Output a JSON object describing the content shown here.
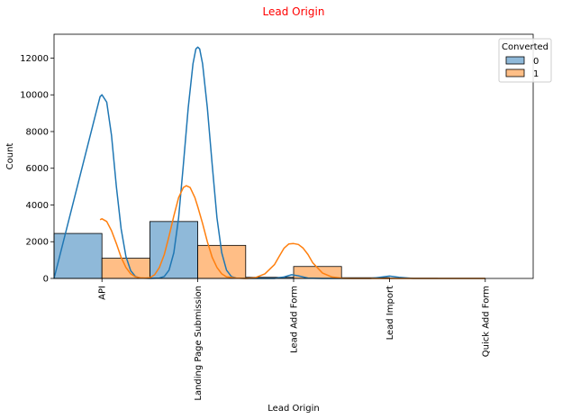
{
  "chart_data": {
    "type": "bar",
    "title": "Lead Origin",
    "title_color": "#ff0000",
    "xlabel": "Lead Origin",
    "ylabel": "Count",
    "ylim": [
      0,
      13300
    ],
    "yticks": [
      0,
      2000,
      4000,
      6000,
      8000,
      10000,
      12000
    ],
    "categories": [
      "API",
      "Landing Page Submission",
      "Lead Add Form",
      "Lead Import",
      "Quick Add Form"
    ],
    "grid": false,
    "legend_title": "Converted",
    "legend_position": "top-right",
    "series": [
      {
        "name": "0",
        "values": [
          2450,
          3100,
          60,
          40,
          0
        ],
        "color": "#1f77b4",
        "fill": "#8fb9d9",
        "kde": [
          [
            -0.5,
            0
          ],
          [
            -0.02,
            9900
          ],
          [
            0,
            10000
          ],
          [
            0.05,
            9600
          ],
          [
            0.1,
            7800
          ],
          [
            0.15,
            5000
          ],
          [
            0.2,
            2700
          ],
          [
            0.25,
            1200
          ],
          [
            0.3,
            420
          ],
          [
            0.35,
            110
          ],
          [
            0.4,
            20
          ],
          [
            0.5,
            0
          ],
          [
            0.6,
            20
          ],
          [
            0.65,
            110
          ],
          [
            0.7,
            450
          ],
          [
            0.75,
            1400
          ],
          [
            0.8,
            3300
          ],
          [
            0.85,
            6200
          ],
          [
            0.9,
            9300
          ],
          [
            0.95,
            11700
          ],
          [
            0.98,
            12500
          ],
          [
            1.0,
            12600
          ],
          [
            1.02,
            12500
          ],
          [
            1.05,
            11700
          ],
          [
            1.1,
            9300
          ],
          [
            1.15,
            6200
          ],
          [
            1.2,
            3300
          ],
          [
            1.25,
            1400
          ],
          [
            1.3,
            450
          ],
          [
            1.35,
            110
          ],
          [
            1.4,
            20
          ],
          [
            1.5,
            0
          ],
          [
            1.8,
            0
          ],
          [
            1.9,
            80
          ],
          [
            1.98,
            200
          ],
          [
            2.05,
            140
          ],
          [
            2.15,
            20
          ],
          [
            2.3,
            0
          ],
          [
            2.8,
            0
          ],
          [
            2.9,
            60
          ],
          [
            3.0,
            130
          ],
          [
            3.1,
            60
          ],
          [
            3.25,
            0
          ],
          [
            4.0,
            0
          ]
        ]
      },
      {
        "name": "1",
        "values": [
          1100,
          1800,
          650,
          10,
          0
        ],
        "color": "#ff7f0e",
        "fill": "#ffbe86",
        "kde": [
          [
            -0.02,
            3200
          ],
          [
            0,
            3250
          ],
          [
            0.05,
            3100
          ],
          [
            0.1,
            2600
          ],
          [
            0.15,
            1900
          ],
          [
            0.2,
            1150
          ],
          [
            0.25,
            600
          ],
          [
            0.3,
            250
          ],
          [
            0.35,
            90
          ],
          [
            0.4,
            30
          ],
          [
            0.45,
            20
          ],
          [
            0.5,
            40
          ],
          [
            0.55,
            200
          ],
          [
            0.6,
            600
          ],
          [
            0.65,
            1300
          ],
          [
            0.7,
            2300
          ],
          [
            0.75,
            3400
          ],
          [
            0.8,
            4400
          ],
          [
            0.85,
            4950
          ],
          [
            0.88,
            5050
          ],
          [
            0.92,
            4950
          ],
          [
            0.97,
            4400
          ],
          [
            1.0,
            3900
          ],
          [
            1.05,
            3000
          ],
          [
            1.1,
            2000
          ],
          [
            1.15,
            1150
          ],
          [
            1.2,
            600
          ],
          [
            1.25,
            250
          ],
          [
            1.3,
            90
          ],
          [
            1.4,
            20
          ],
          [
            1.5,
            0
          ],
          [
            1.6,
            40
          ],
          [
            1.7,
            250
          ],
          [
            1.8,
            750
          ],
          [
            1.85,
            1200
          ],
          [
            1.9,
            1650
          ],
          [
            1.95,
            1880
          ],
          [
            2.0,
            1900
          ],
          [
            2.05,
            1850
          ],
          [
            2.1,
            1650
          ],
          [
            2.15,
            1300
          ],
          [
            2.2,
            850
          ],
          [
            2.3,
            300
          ],
          [
            2.4,
            80
          ],
          [
            2.5,
            10
          ],
          [
            2.6,
            0
          ],
          [
            4.0,
            0
          ]
        ]
      }
    ]
  }
}
